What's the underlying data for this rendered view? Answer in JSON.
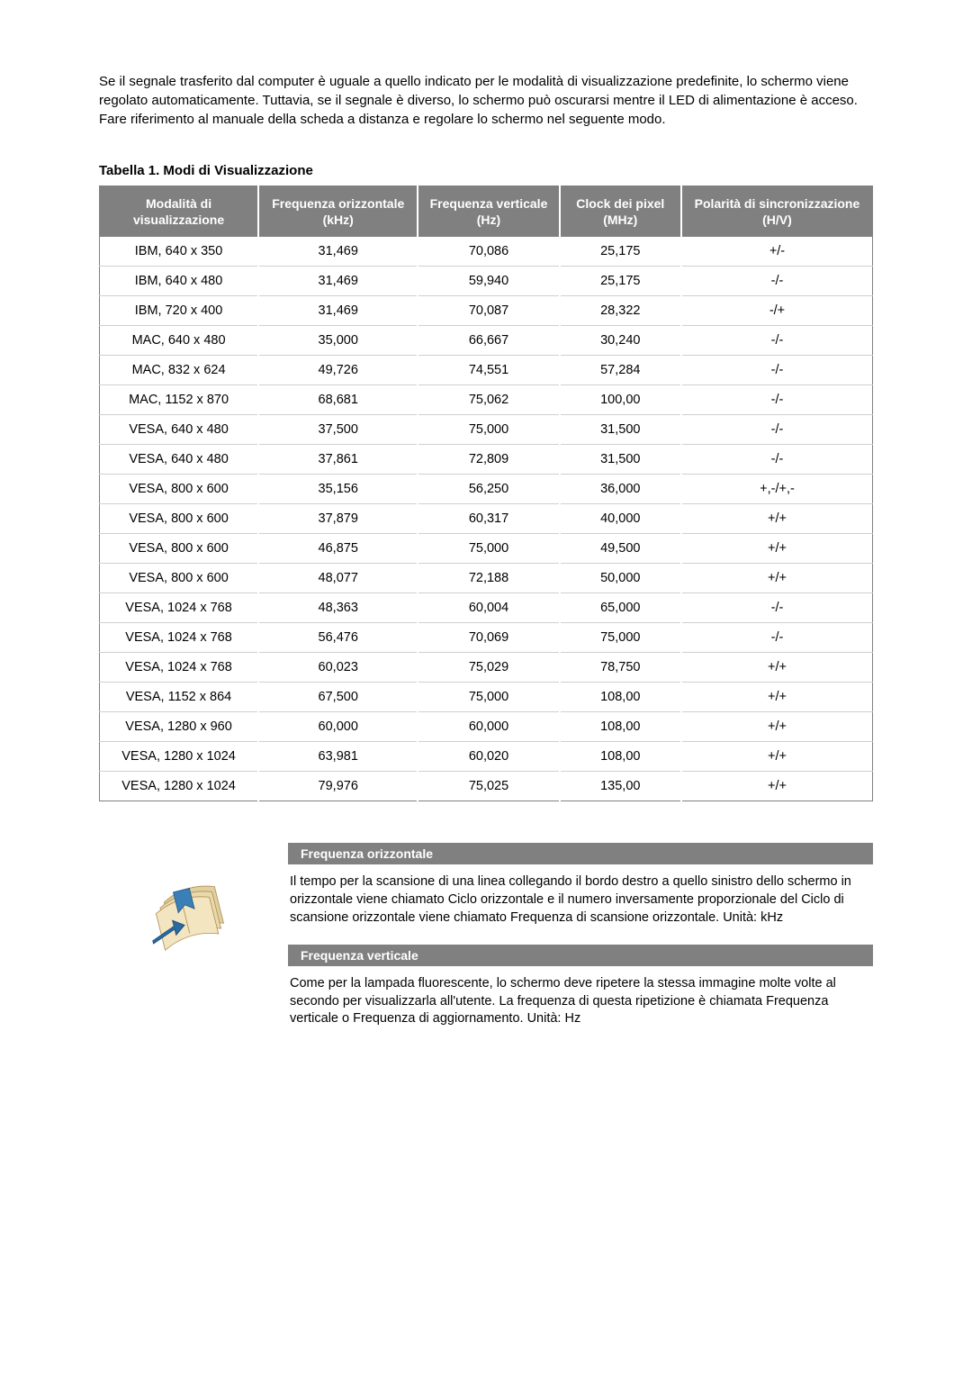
{
  "intro": "Se il segnale trasferito dal computer è uguale a quello indicato per le modalità di visualizzazione predefinite, lo schermo viene regolato automaticamente. Tuttavia, se il segnale è diverso, lo schermo può oscurarsi mentre il LED di alimentazione è acceso. Fare riferimento al manuale della scheda a distanza e regolare lo schermo nel seguente modo.",
  "table_title": "Tabella 1. Modi di Visualizzazione",
  "table": {
    "columns": [
      "Modalità di visualizzazione",
      "Frequenza orizzontale (kHz)",
      "Frequenza verticale (Hz)",
      "Clock dei pixel (MHz)",
      "Polarità di sincronizzazione (H/V)"
    ],
    "rows": [
      [
        "IBM, 640 x 350",
        "31,469",
        "70,086",
        "25,175",
        "+/-"
      ],
      [
        "IBM, 640 x 480",
        "31,469",
        "59,940",
        "25,175",
        "-/-"
      ],
      [
        "IBM, 720 x 400",
        "31,469",
        "70,087",
        "28,322",
        "-/+"
      ],
      [
        "MAC, 640 x 480",
        "35,000",
        "66,667",
        "30,240",
        "-/-"
      ],
      [
        "MAC, 832 x 624",
        "49,726",
        "74,551",
        "57,284",
        "-/-"
      ],
      [
        "MAC, 1152 x 870",
        "68,681",
        "75,062",
        "100,00",
        "-/-"
      ],
      [
        "VESA, 640 x 480",
        "37,500",
        "75,000",
        "31,500",
        "-/-"
      ],
      [
        "VESA, 640 x 480",
        "37,861",
        "72,809",
        "31,500",
        "-/-"
      ],
      [
        "VESA, 800 x 600",
        "35,156",
        "56,250",
        "36,000",
        "+,-/+,-"
      ],
      [
        "VESA, 800 x 600",
        "37,879",
        "60,317",
        "40,000",
        "+/+"
      ],
      [
        "VESA, 800 x 600",
        "46,875",
        "75,000",
        "49,500",
        "+/+"
      ],
      [
        "VESA, 800 x 600",
        "48,077",
        "72,188",
        "50,000",
        "+/+"
      ],
      [
        "VESA, 1024 x 768",
        "48,363",
        "60,004",
        "65,000",
        "-/-"
      ],
      [
        "VESA, 1024 x 768",
        "56,476",
        "70,069",
        "75,000",
        "-/-"
      ],
      [
        "VESA, 1024 x 768",
        "60,023",
        "75,029",
        "78,750",
        "+/+"
      ],
      [
        "VESA, 1152 x 864",
        "67,500",
        "75,000",
        "108,00",
        "+/+"
      ],
      [
        "VESA, 1280 x 960",
        "60,000",
        "60,000",
        "108,00",
        "+/+"
      ],
      [
        "VESA, 1280 x 1024",
        "63,981",
        "60,020",
        "108,00",
        "+/+"
      ],
      [
        "VESA, 1280 x 1024",
        "79,976",
        "75,025",
        "135,00",
        "+/+"
      ]
    ],
    "header_bg": "#808080",
    "header_text_color": "#ffffff",
    "row_border_color": "#cfcfcf",
    "outer_border_color": "#808080",
    "font_size": 14.5
  },
  "definitions": [
    {
      "heading": "Frequenza orizzontale",
      "body": "Il tempo per la scansione di una linea collegando il bordo destro a quello sinistro dello schermo in orizzontale viene chiamato Ciclo orizzontale e il numero inversamente proporzionale del Ciclo di scansione orizzontale viene chiamato Frequenza di scansione orizzontale. Unità: kHz"
    },
    {
      "heading": "Frequenza verticale",
      "body": "Come per la lampada fluorescente, lo schermo deve ripetere la stessa immagine molte volte al secondo per visualizzarla all'utente. La frequenza di questa ripetizione è chiamata Frequenza verticale o Frequenza di aggiornamento. Unità: Hz"
    }
  ],
  "icon_colors": {
    "pages": "#e0cfa0",
    "bookmark": "#3a7fb5",
    "arrow": "#2a6aa0"
  }
}
